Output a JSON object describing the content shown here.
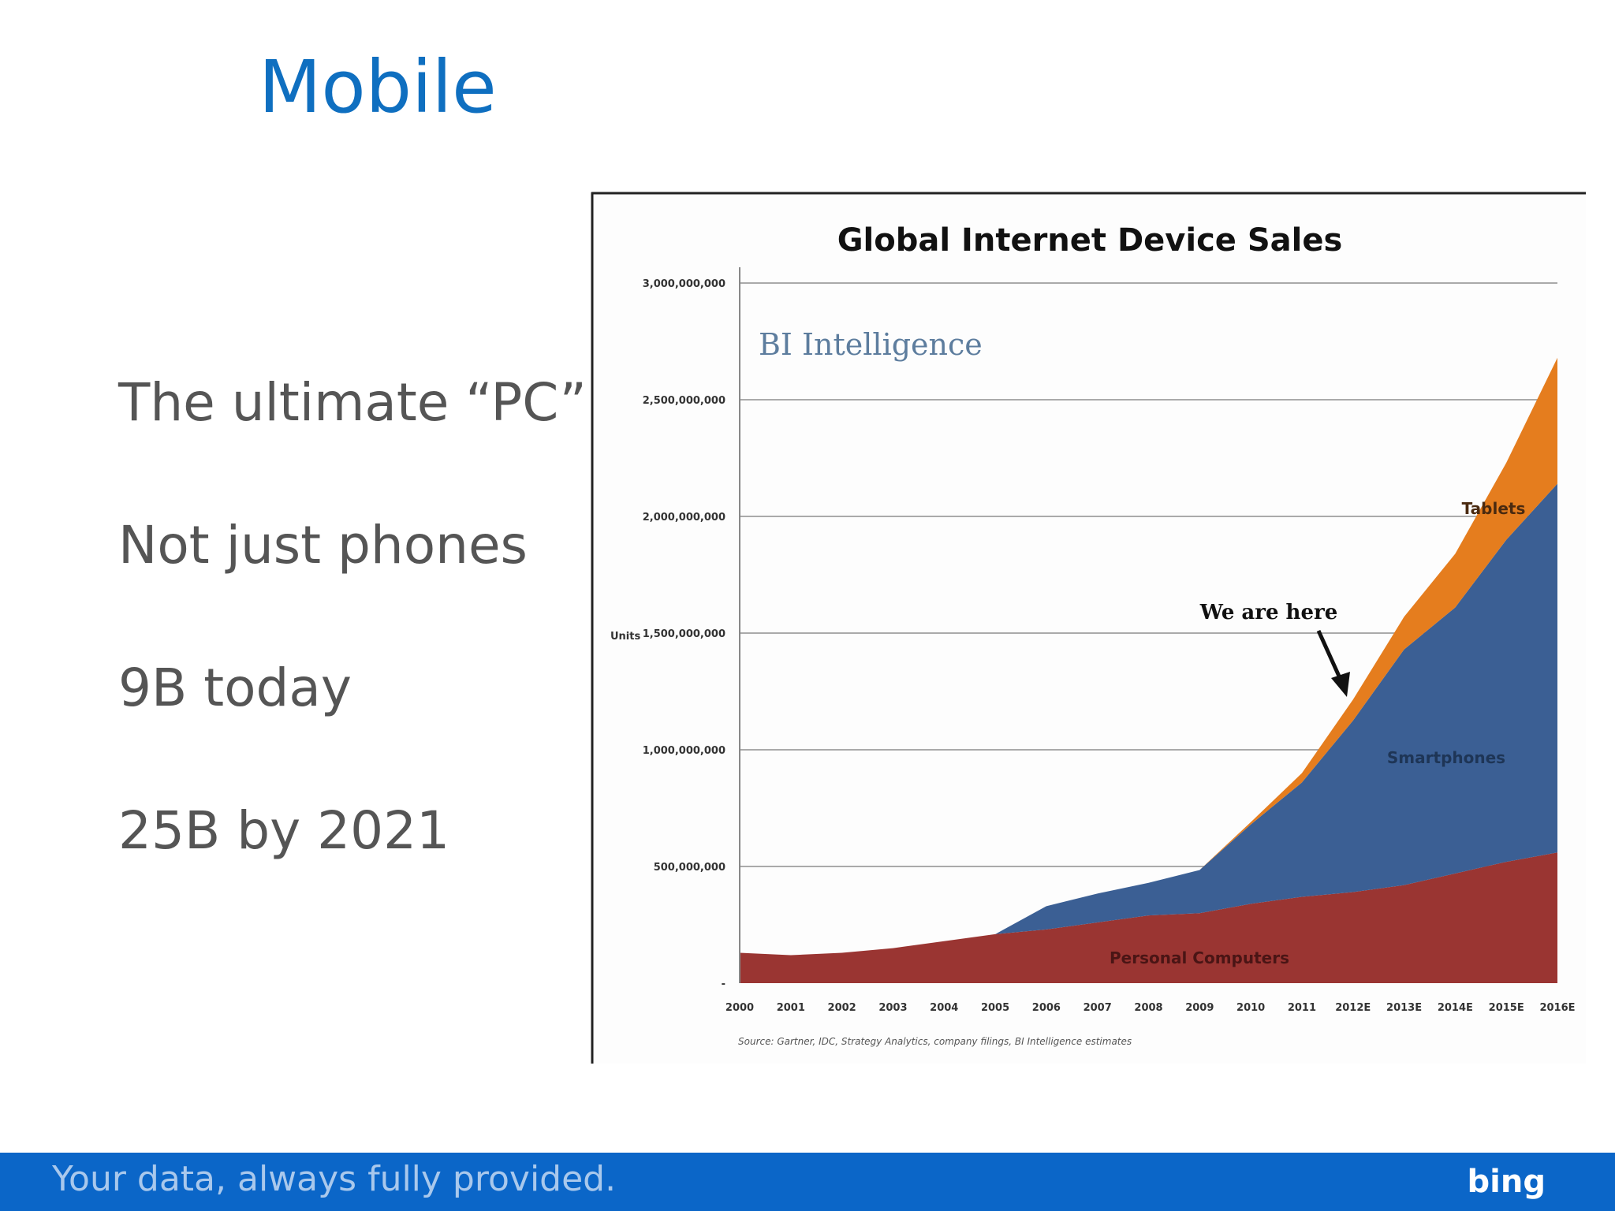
{
  "slide": {
    "title": "Mobile",
    "bullets": [
      "The ultimate “PC”",
      "Not just phones",
      "9B today",
      "25B by 2021"
    ]
  },
  "footer": {
    "text": "Your data, always fully provided.",
    "logo": "bing"
  },
  "chart_data": {
    "type": "stacked-area",
    "title": "Global Internet Device Sales",
    "y_label": "Units",
    "brand": "BI Intelligence",
    "annotation": "We are here",
    "source": "Source: Gartner, IDC, Strategy Analytics, company filings, BI Intelligence estimates",
    "categories": [
      "2000",
      "2001",
      "2002",
      "2003",
      "2004",
      "2005",
      "2006",
      "2007",
      "2008",
      "2009",
      "2010",
      "2011",
      "2012E",
      "2013E",
      "2014E",
      "2015E",
      "2016E"
    ],
    "series": [
      {
        "name": "Personal Computers",
        "color": "#9a3532",
        "values": [
          130000000,
          120000000,
          130000000,
          150000000,
          180000000,
          210000000,
          230000000,
          260000000,
          290000000,
          300000000,
          340000000,
          370000000,
          390000000,
          420000000,
          470000000,
          520000000,
          560000000
        ]
      },
      {
        "name": "Smartphones",
        "color": "#3b5f94",
        "values": [
          0,
          0,
          0,
          0,
          0,
          0,
          100000000,
          124000000,
          140000000,
          185000000,
          340000000,
          490000000,
          735000000,
          1010000000,
          1140000000,
          1380000000,
          1580000000
        ]
      },
      {
        "name": "Tablets",
        "color": "#e57d1e",
        "values": [
          0,
          0,
          0,
          0,
          0,
          0,
          0,
          0,
          0,
          0,
          10000000,
          40000000,
          90000000,
          140000000,
          230000000,
          330000000,
          540000000
        ]
      }
    ],
    "ylim": [
      0,
      3000000000
    ],
    "yticks": [
      {
        "value": 0,
        "label": "-"
      },
      {
        "value": 500000000,
        "label": "500,000,000"
      },
      {
        "value": 1000000000,
        "label": "1,000,000,000"
      },
      {
        "value": 1500000000,
        "label": "1,500,000,000"
      },
      {
        "value": 2000000000,
        "label": "2,000,000,000"
      },
      {
        "value": 2500000000,
        "label": "2,500,000,000"
      },
      {
        "value": 3000000000,
        "label": "3,000,000,000"
      }
    ],
    "grid": true
  }
}
